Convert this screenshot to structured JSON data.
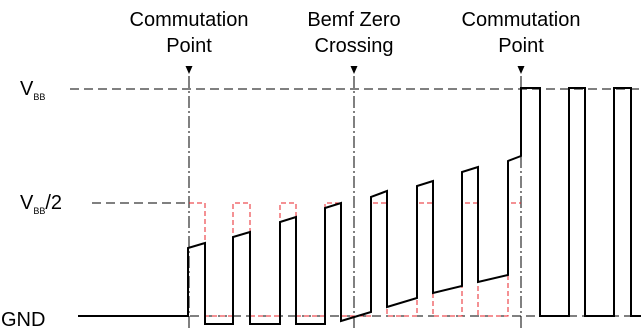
{
  "diagram": {
    "annotations": [
      {
        "line1": "Commutation",
        "line2": "Point"
      },
      {
        "line1": "Bemf Zero",
        "line2": "Crossing"
      },
      {
        "line1": "Commutation",
        "line2": "Point"
      }
    ],
    "levels": {
      "vbb_main": "V",
      "vbb_sub": "BB",
      "half_main": "V",
      "half_sub": "BB",
      "half_suffix": "/2",
      "gnd": "GND"
    },
    "colors": {
      "waveform": "#000000",
      "reference": "#e8232a",
      "guide": "#000000"
    }
  }
}
